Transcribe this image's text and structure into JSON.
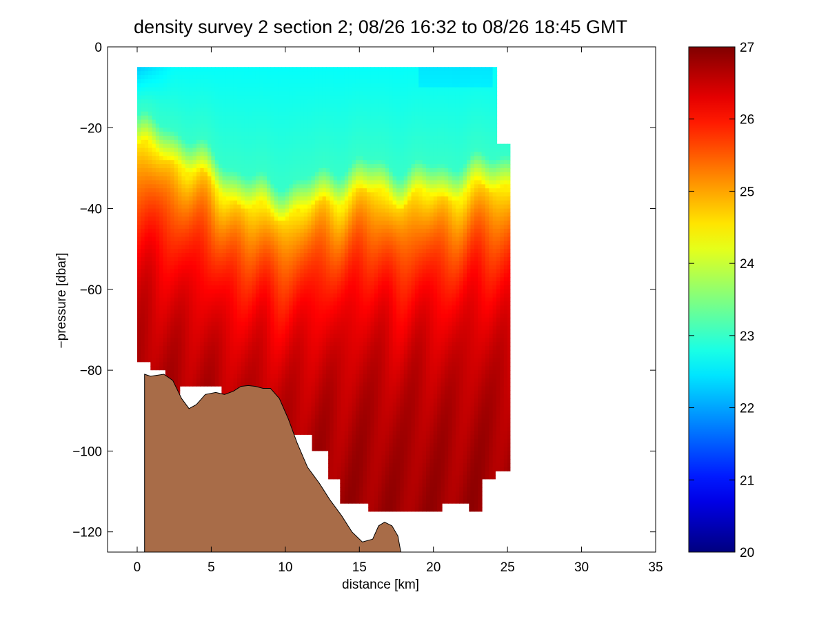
{
  "chart_data": {
    "type": "heatmap",
    "title": "density survey 2 section 2; 08/26 16:32 to 08/26 18:45 GMT",
    "xlabel": "distance [km]",
    "ylabel": "−pressure [dbar]",
    "xlim": [
      -2,
      35
    ],
    "ylim": [
      -125,
      0
    ],
    "xticks": [
      0,
      5,
      10,
      15,
      20,
      25,
      30,
      35
    ],
    "xtick_labels": [
      "0",
      "5",
      "10",
      "15",
      "20",
      "25",
      "30",
      "35"
    ],
    "yticks": [
      0,
      -20,
      -40,
      -60,
      -80,
      -100,
      -120
    ],
    "ytick_labels": [
      "0",
      "−20",
      "−40",
      "−60",
      "−80",
      "−100",
      "−120"
    ],
    "colorbar": {
      "colormap": "jet",
      "clim": [
        20,
        27
      ],
      "ticks": [
        20,
        21,
        22,
        23,
        24,
        25,
        26,
        27
      ],
      "tick_labels": [
        "20",
        "21",
        "22",
        "23",
        "24",
        "25",
        "26",
        "27"
      ]
    },
    "field_description": "density anomaly sigma; ~22.5 near surface, yellow pycnocline (~24.5) from about -20 dbar at x=0 to about -38 dbar at x=9 km and -30 dbar at x=25 km, ~26 at -50 dbar, ~26.8 near -110 dbar",
    "profiles": [
      {
        "x": 0.0,
        "top": -5,
        "bottom": -78,
        "pycnocline": -21
      },
      {
        "x": 3.0,
        "top": -5,
        "bottom": -86,
        "pycnocline": -25
      },
      {
        "x": 6.0,
        "top": -5,
        "bottom": -84,
        "pycnocline": -33
      },
      {
        "x": 9.0,
        "top": -5,
        "bottom": -88,
        "pycnocline": -38
      },
      {
        "x": 12.0,
        "top": -5,
        "bottom": -100,
        "pycnocline": -36
      },
      {
        "x": 15.0,
        "top": -5,
        "bottom": -115,
        "pycnocline": -32
      },
      {
        "x": 18.0,
        "top": -5,
        "bottom": -115,
        "pycnocline": -34
      },
      {
        "x": 21.0,
        "top": -5,
        "bottom": -115,
        "pycnocline": -33
      },
      {
        "x": 24.0,
        "top": -5,
        "bottom": -106,
        "pycnocline": -31
      },
      {
        "x": 25.2,
        "top": -24,
        "bottom": -105,
        "pycnocline": -30
      }
    ],
    "bathymetry": [
      [
        0.5,
        -125
      ],
      [
        0.5,
        -81
      ],
      [
        0.9,
        -81.5
      ],
      [
        1.8,
        -81
      ],
      [
        2.4,
        -82.5
      ],
      [
        3.0,
        -87
      ],
      [
        3.5,
        -89.5
      ],
      [
        4.0,
        -88.5
      ],
      [
        4.6,
        -86
      ],
      [
        5.3,
        -85.5
      ],
      [
        5.9,
        -86
      ],
      [
        6.5,
        -85.2
      ],
      [
        7.0,
        -84
      ],
      [
        7.5,
        -83.8
      ],
      [
        8.0,
        -84
      ],
      [
        8.5,
        -84.5
      ],
      [
        9.0,
        -84.5
      ],
      [
        9.6,
        -87
      ],
      [
        10.2,
        -92
      ],
      [
        10.8,
        -98
      ],
      [
        11.5,
        -104
      ],
      [
        12.3,
        -108
      ],
      [
        13.0,
        -112
      ],
      [
        13.8,
        -116
      ],
      [
        14.5,
        -120
      ],
      [
        15.2,
        -122.5
      ],
      [
        15.9,
        -121.8
      ],
      [
        16.3,
        -118.5
      ],
      [
        16.7,
        -117.6
      ],
      [
        17.2,
        -118.5
      ],
      [
        17.6,
        -121
      ],
      [
        17.8,
        -125
      ]
    ],
    "bathymetry_color": "#a86c48",
    "grid": false
  }
}
